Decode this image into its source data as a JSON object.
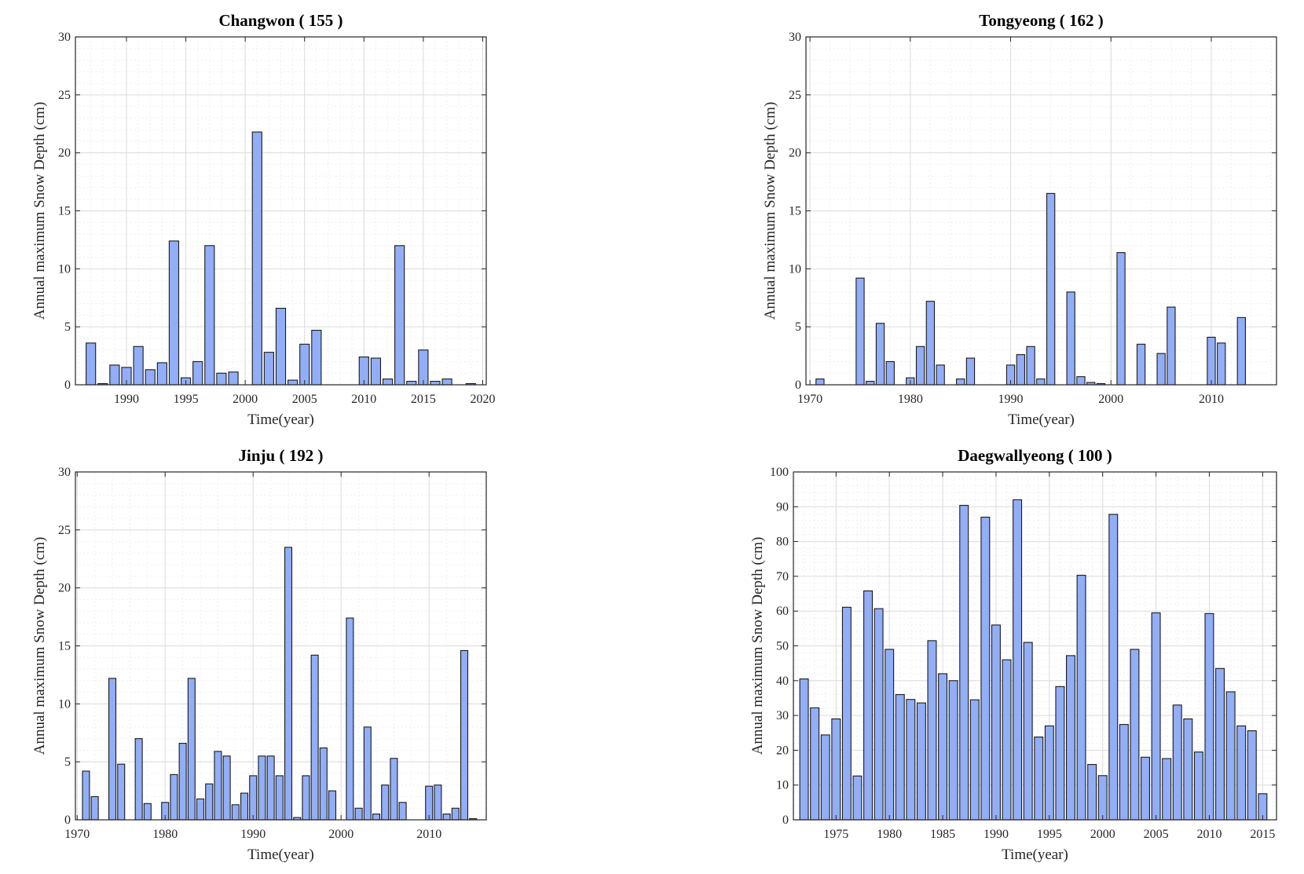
{
  "style": {
    "bar_fill": "#92aef7",
    "bar_stroke": "#1a1a1a",
    "grid_color": "#dcdcdc",
    "minor_grid_color": "#efefef",
    "axis_color": "#262626"
  },
  "chart_data": [
    {
      "type": "bar",
      "title": "Changwon ( 155 )",
      "xlabel": "Time(year)",
      "ylabel": "Annual maximum Snow Depth (cm)",
      "xlim": [
        1985.7,
        2020.3
      ],
      "ylim": [
        0,
        30
      ],
      "xticks": [
        1990,
        1995,
        2000,
        2005,
        2010,
        2015,
        2020
      ],
      "yticks": [
        0,
        5,
        10,
        15,
        20,
        25,
        30
      ],
      "grid": true,
      "x": [
        1987,
        1988,
        1989,
        1990,
        1991,
        1992,
        1993,
        1994,
        1995,
        1996,
        1997,
        1998,
        1999,
        2000,
        2001,
        2002,
        2003,
        2004,
        2005,
        2006,
        2007,
        2008,
        2009,
        2010,
        2011,
        2012,
        2013,
        2014,
        2015,
        2016,
        2017,
        2018,
        2019
      ],
      "values": [
        3.6,
        0.1,
        1.7,
        1.5,
        3.3,
        1.3,
        1.9,
        12.4,
        0.6,
        2.0,
        12.0,
        1.0,
        1.1,
        0.0,
        21.8,
        2.8,
        6.6,
        0.4,
        3.5,
        4.7,
        0.0,
        0.0,
        0.0,
        2.4,
        2.3,
        0.5,
        12.0,
        0.3,
        3.0,
        0.3,
        0.5,
        0.0,
        0.1
      ]
    },
    {
      "type": "bar",
      "title": "Tongyeong ( 162 )",
      "xlabel": "Time(year)",
      "ylabel": "Annual maximum Snow Depth (cm)",
      "xlim": [
        1969.6,
        2016.5
      ],
      "ylim": [
        0,
        30
      ],
      "xticks": [
        1970,
        1980,
        1990,
        2000,
        2010
      ],
      "yticks": [
        0,
        5,
        10,
        15,
        20,
        25,
        30
      ],
      "grid": true,
      "x": [
        1971,
        1972,
        1973,
        1974,
        1975,
        1976,
        1977,
        1978,
        1979,
        1980,
        1981,
        1982,
        1983,
        1984,
        1985,
        1986,
        1987,
        1988,
        1989,
        1990,
        1991,
        1992,
        1993,
        1994,
        1995,
        1996,
        1997,
        1998,
        1999,
        2000,
        2001,
        2002,
        2003,
        2004,
        2005,
        2006,
        2007,
        2008,
        2009,
        2010,
        2011,
        2012,
        2013
      ],
      "values": [
        0.5,
        0.0,
        0.0,
        0.0,
        9.2,
        0.3,
        5.3,
        2.0,
        0.0,
        0.6,
        3.3,
        7.2,
        1.7,
        0.0,
        0.5,
        2.3,
        0.0,
        0.0,
        0.0,
        1.7,
        2.6,
        3.3,
        0.5,
        16.5,
        0.0,
        8.0,
        0.7,
        0.2,
        0.1,
        0.0,
        11.4,
        0.0,
        3.5,
        0.0,
        2.7,
        6.7,
        0.0,
        0.0,
        0.0,
        4.1,
        3.6,
        0.0,
        5.8
      ]
    },
    {
      "type": "bar",
      "title": "Jinju ( 192 )",
      "xlabel": "Time(year)",
      "ylabel": "Annual maximum Snow Depth (cm)",
      "xlim": [
        1969.8,
        2016.5
      ],
      "ylim": [
        0,
        30
      ],
      "xticks": [
        1970,
        1980,
        1990,
        2000,
        2010
      ],
      "yticks": [
        0,
        5,
        10,
        15,
        20,
        25,
        30
      ],
      "grid": true,
      "x": [
        1971,
        1972,
        1973,
        1974,
        1975,
        1976,
        1977,
        1978,
        1979,
        1980,
        1981,
        1982,
        1983,
        1984,
        1985,
        1986,
        1987,
        1988,
        1989,
        1990,
        1991,
        1992,
        1993,
        1994,
        1995,
        1996,
        1997,
        1998,
        1999,
        2000,
        2001,
        2002,
        2003,
        2004,
        2005,
        2006,
        2007,
        2008,
        2009,
        2010,
        2011,
        2012,
        2013,
        2014,
        2015
      ],
      "values": [
        4.2,
        2.0,
        0.0,
        12.2,
        4.8,
        0.0,
        7.0,
        1.4,
        0.0,
        1.5,
        3.9,
        6.6,
        12.2,
        1.8,
        3.1,
        5.9,
        5.5,
        1.3,
        2.3,
        3.8,
        5.5,
        5.5,
        3.8,
        23.5,
        0.2,
        3.8,
        14.2,
        6.2,
        2.5,
        0.0,
        17.4,
        1.0,
        8.0,
        0.5,
        3.0,
        5.3,
        1.5,
        0.0,
        0.0,
        2.9,
        3.0,
        0.5,
        1.0,
        14.6,
        0.1
      ]
    },
    {
      "type": "bar",
      "title": "Daegwallyeong ( 100 )",
      "xlabel": "Time(year)",
      "ylabel": "Annual maximum Snow Depth (cm)",
      "xlim": [
        1971.0,
        2016.3
      ],
      "ylim": [
        0,
        100
      ],
      "xticks": [
        1975,
        1980,
        1985,
        1990,
        1995,
        2000,
        2005,
        2010,
        2015
      ],
      "yticks": [
        0,
        10,
        20,
        30,
        40,
        50,
        60,
        70,
        80,
        90,
        100
      ],
      "grid": true,
      "x": [
        1972,
        1973,
        1974,
        1975,
        1976,
        1977,
        1978,
        1979,
        1980,
        1981,
        1982,
        1983,
        1984,
        1985,
        1986,
        1987,
        1988,
        1989,
        1990,
        1991,
        1992,
        1993,
        1994,
        1995,
        1996,
        1997,
        1998,
        1999,
        2000,
        2001,
        2002,
        2003,
        2004,
        2005,
        2006,
        2007,
        2008,
        2009,
        2010,
        2011,
        2012,
        2013,
        2014,
        2015
      ],
      "values": [
        40.5,
        32.2,
        24.4,
        29.0,
        61.1,
        12.6,
        65.8,
        60.7,
        49.0,
        36.0,
        34.6,
        33.6,
        51.5,
        42.0,
        40.0,
        90.4,
        34.5,
        87.0,
        56.0,
        46.0,
        92.0,
        51.0,
        23.8,
        27.0,
        38.3,
        47.2,
        70.3,
        15.9,
        12.7,
        87.8,
        27.4,
        49.0,
        18.0,
        59.5,
        17.6,
        33.0,
        29.0,
        19.5,
        59.3,
        43.5,
        36.8,
        27.0,
        25.6,
        7.5
      ]
    }
  ]
}
